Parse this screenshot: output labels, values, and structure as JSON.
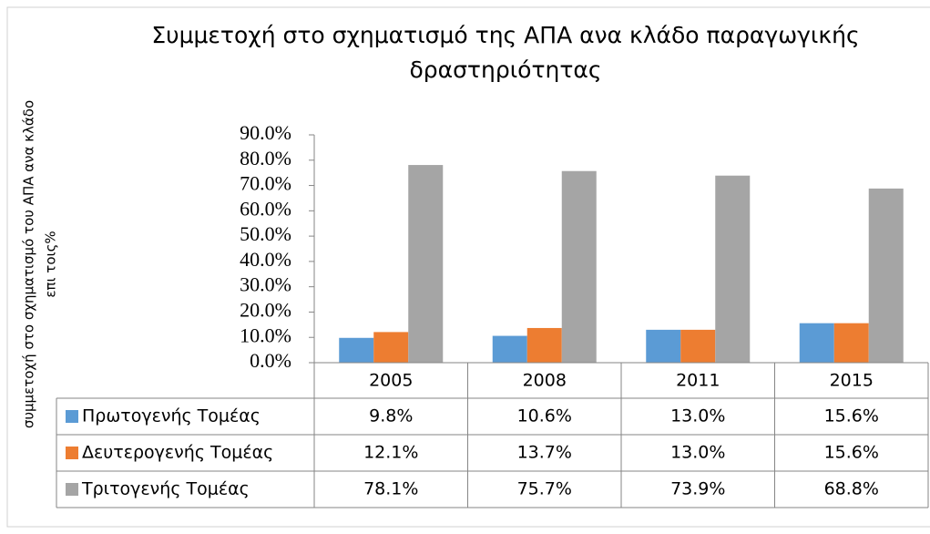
{
  "chart_data": {
    "type": "bar",
    "title": "Συμμετοχή στο σχηματισμό της ΑΠΑ ανα κλάδο παραγωγικής δραστηριότητας",
    "ylabel": [
      "συμμετοχή στο σχηματισμό του ΑΠΑ ανα κλάδο",
      "επι τοις%"
    ],
    "categories": [
      "2005",
      "2008",
      "2011",
      "2015"
    ],
    "series": [
      {
        "name": "Πρωτογενής Τομέας",
        "color": "#5b9bd5",
        "values": [
          9.8,
          10.6,
          13.0,
          15.6
        ],
        "value_labels": [
          "9.8%",
          "10.6%",
          "13.0%",
          "15.6%"
        ]
      },
      {
        "name": "Δευτερογενής Τομέας",
        "color": "#ed7d31",
        "values": [
          12.1,
          13.7,
          13.0,
          15.6
        ],
        "value_labels": [
          "12.1%",
          "13.7%",
          "13.0%",
          "15.6%"
        ]
      },
      {
        "name": "Τριτογενής Τομέας",
        "color": "#a5a5a5",
        "values": [
          78.1,
          75.7,
          73.9,
          68.8
        ],
        "value_labels": [
          "78.1%",
          "75.7%",
          "73.9%",
          "68.8%"
        ]
      }
    ],
    "ylim": [
      0,
      90
    ],
    "yticks": [
      {
        "value": 0,
        "label": "0.0%"
      },
      {
        "value": 10,
        "label": "10.0%"
      },
      {
        "value": 20,
        "label": "20.0%"
      },
      {
        "value": 30,
        "label": "30.0%"
      },
      {
        "value": 40,
        "label": "40.0%"
      },
      {
        "value": 50,
        "label": "50.0%"
      },
      {
        "value": 60,
        "label": "60.0%"
      },
      {
        "value": 70,
        "label": "70.0%"
      },
      {
        "value": 80,
        "label": "80.0%"
      },
      {
        "value": 90,
        "label": "90.0%"
      }
    ],
    "grid": false
  }
}
